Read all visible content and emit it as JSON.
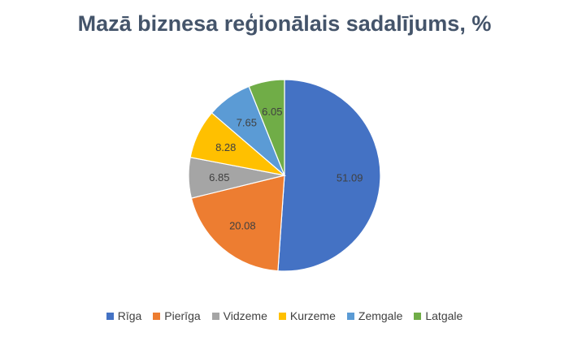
{
  "chart_data": {
    "type": "pie",
    "title": "Mazā biznesa reģionālais sadalījums, %",
    "categories": [
      "Rīga",
      "Pierīga",
      "Vidzeme",
      "Kurzeme",
      "Zemgale",
      "Latgale"
    ],
    "values": [
      51.09,
      20.08,
      6.85,
      8.28,
      7.65,
      6.05
    ],
    "value_labels": [
      "51.09",
      "20.08",
      "6.85",
      "8.28",
      "7.65",
      "6.05"
    ],
    "colors": [
      "#4472C4",
      "#ED7D31",
      "#A5A5A5",
      "#FFC000",
      "#5B9BD5",
      "#70AD47"
    ],
    "legend_position": "bottom",
    "label_position": "inside"
  }
}
